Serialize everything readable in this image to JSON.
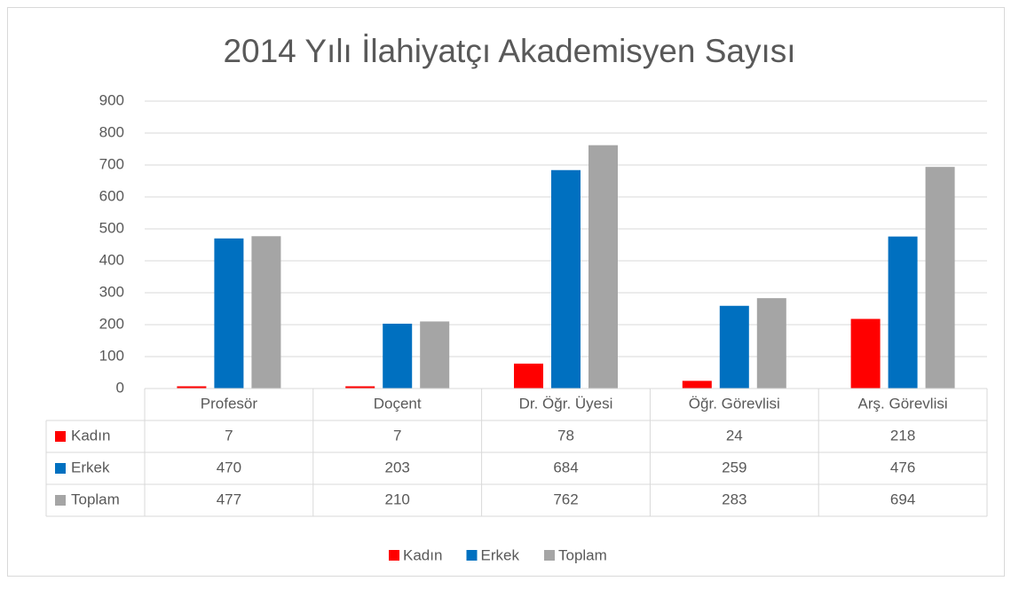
{
  "chart_data": {
    "type": "bar",
    "title": "2014 Yılı İlahiyatçı Akademisyen Sayısı",
    "categories": [
      "Profesör",
      "Doçent",
      "Dr. Öğr. Üyesi",
      "Öğr. Görevlisi",
      "Arş. Görevlisi"
    ],
    "series": [
      {
        "name": "Kadın",
        "color": "#ff0000",
        "values": [
          7,
          7,
          78,
          24,
          218
        ]
      },
      {
        "name": "Erkek",
        "color": "#0070c0",
        "values": [
          470,
          203,
          684,
          259,
          476
        ]
      },
      {
        "name": "Toplam",
        "color": "#a5a5a5",
        "values": [
          477,
          210,
          762,
          283,
          694
        ]
      }
    ],
    "ylim": [
      0,
      900
    ],
    "yticks": [
      0,
      100,
      200,
      300,
      400,
      500,
      600,
      700,
      800,
      900
    ],
    "grid": true,
    "legend": "bottom",
    "data_table": true
  }
}
